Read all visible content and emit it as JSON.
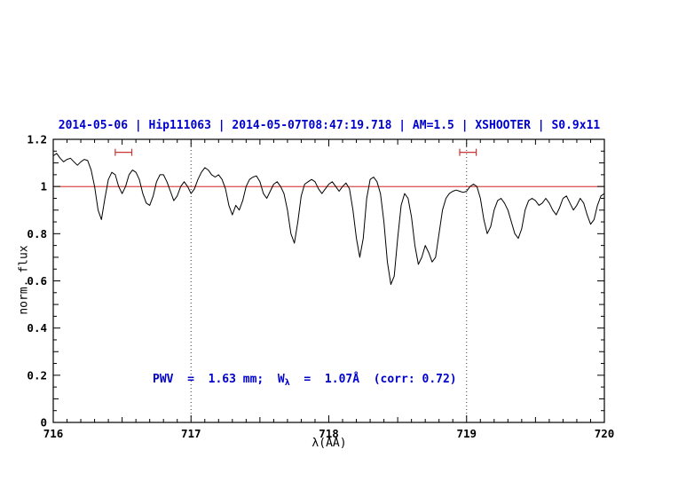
{
  "colors": {
    "title": "#0000cd",
    "annotation": "#0000cd",
    "spectrum": "#000000",
    "reference": "#cc0000",
    "marker": "#cc3333",
    "dotted": "#333333",
    "frame": "#000000"
  },
  "chart_data": {
    "type": "line",
    "title": "2014-05-06 | Hip111063 | 2014-05-07T08:47:19.718 | AM=1.5 | XSHOOTER | S0.9x11",
    "xlabel": "λ(AA)",
    "ylabel": "norm. flux",
    "xlim": [
      716,
      720
    ],
    "ylim": [
      0,
      1.2
    ],
    "grid": false,
    "legend": false,
    "xticks": [
      716,
      717,
      718,
      719,
      720
    ],
    "xtick_labels": [
      "716",
      "717",
      "718",
      "719",
      "720"
    ],
    "yticks": [
      0,
      0.2,
      0.4,
      0.6,
      0.8,
      1,
      1.2
    ],
    "ytick_labels": [
      "0",
      "0.2",
      "0.4",
      "0.6",
      "0.8",
      "1",
      "1.2"
    ],
    "reference_line_y": 1.0,
    "vlines": [
      717,
      719
    ],
    "range_markers": [
      {
        "x1": 716.45,
        "x2": 716.57,
        "y": 1.145
      },
      {
        "x1": 718.95,
        "x2": 719.07,
        "y": 1.145
      }
    ],
    "annotation": {
      "prefix": "PWV  =  1.63 mm;  W",
      "sub": "λ",
      "suffix": "  =  1.07Å  (corr: 0.72)",
      "x": 716.52,
      "y": 0.21
    },
    "series": [
      {
        "name": "spectrum",
        "x_start": 716.0,
        "x_step": 0.025,
        "values": [
          1.13,
          1.14,
          1.12,
          1.105,
          1.115,
          1.12,
          1.105,
          1.09,
          1.105,
          1.115,
          1.11,
          1.07,
          1.0,
          0.9,
          0.86,
          0.95,
          1.03,
          1.06,
          1.05,
          1.0,
          0.97,
          1.0,
          1.05,
          1.07,
          1.06,
          1.03,
          0.97,
          0.93,
          0.92,
          0.96,
          1.02,
          1.05,
          1.05,
          1.02,
          0.98,
          0.94,
          0.96,
          1.0,
          1.02,
          1.0,
          0.97,
          0.99,
          1.03,
          1.06,
          1.08,
          1.07,
          1.05,
          1.04,
          1.05,
          1.03,
          0.99,
          0.92,
          0.88,
          0.92,
          0.9,
          0.94,
          1.0,
          1.03,
          1.04,
          1.045,
          1.02,
          0.97,
          0.95,
          0.98,
          1.01,
          1.02,
          1.0,
          0.97,
          0.9,
          0.8,
          0.76,
          0.85,
          0.96,
          1.01,
          1.02,
          1.03,
          1.02,
          0.99,
          0.97,
          0.99,
          1.01,
          1.02,
          1.0,
          0.98,
          1.0,
          1.015,
          0.99,
          0.9,
          0.78,
          0.7,
          0.78,
          0.95,
          1.03,
          1.04,
          1.02,
          0.97,
          0.85,
          0.68,
          0.585,
          0.62,
          0.78,
          0.92,
          0.97,
          0.95,
          0.87,
          0.75,
          0.67,
          0.7,
          0.75,
          0.72,
          0.68,
          0.7,
          0.8,
          0.9,
          0.95,
          0.97,
          0.98,
          0.985,
          0.98,
          0.975,
          0.98,
          1.0,
          1.01,
          1.0,
          0.95,
          0.86,
          0.8,
          0.83,
          0.9,
          0.94,
          0.95,
          0.93,
          0.9,
          0.85,
          0.8,
          0.78,
          0.82,
          0.9,
          0.94,
          0.95,
          0.94,
          0.92,
          0.93,
          0.95,
          0.93,
          0.9,
          0.88,
          0.91,
          0.95,
          0.96,
          0.93,
          0.9,
          0.92,
          0.95,
          0.93,
          0.88,
          0.84,
          0.86,
          0.92,
          0.96,
          0.97
        ]
      }
    ]
  }
}
